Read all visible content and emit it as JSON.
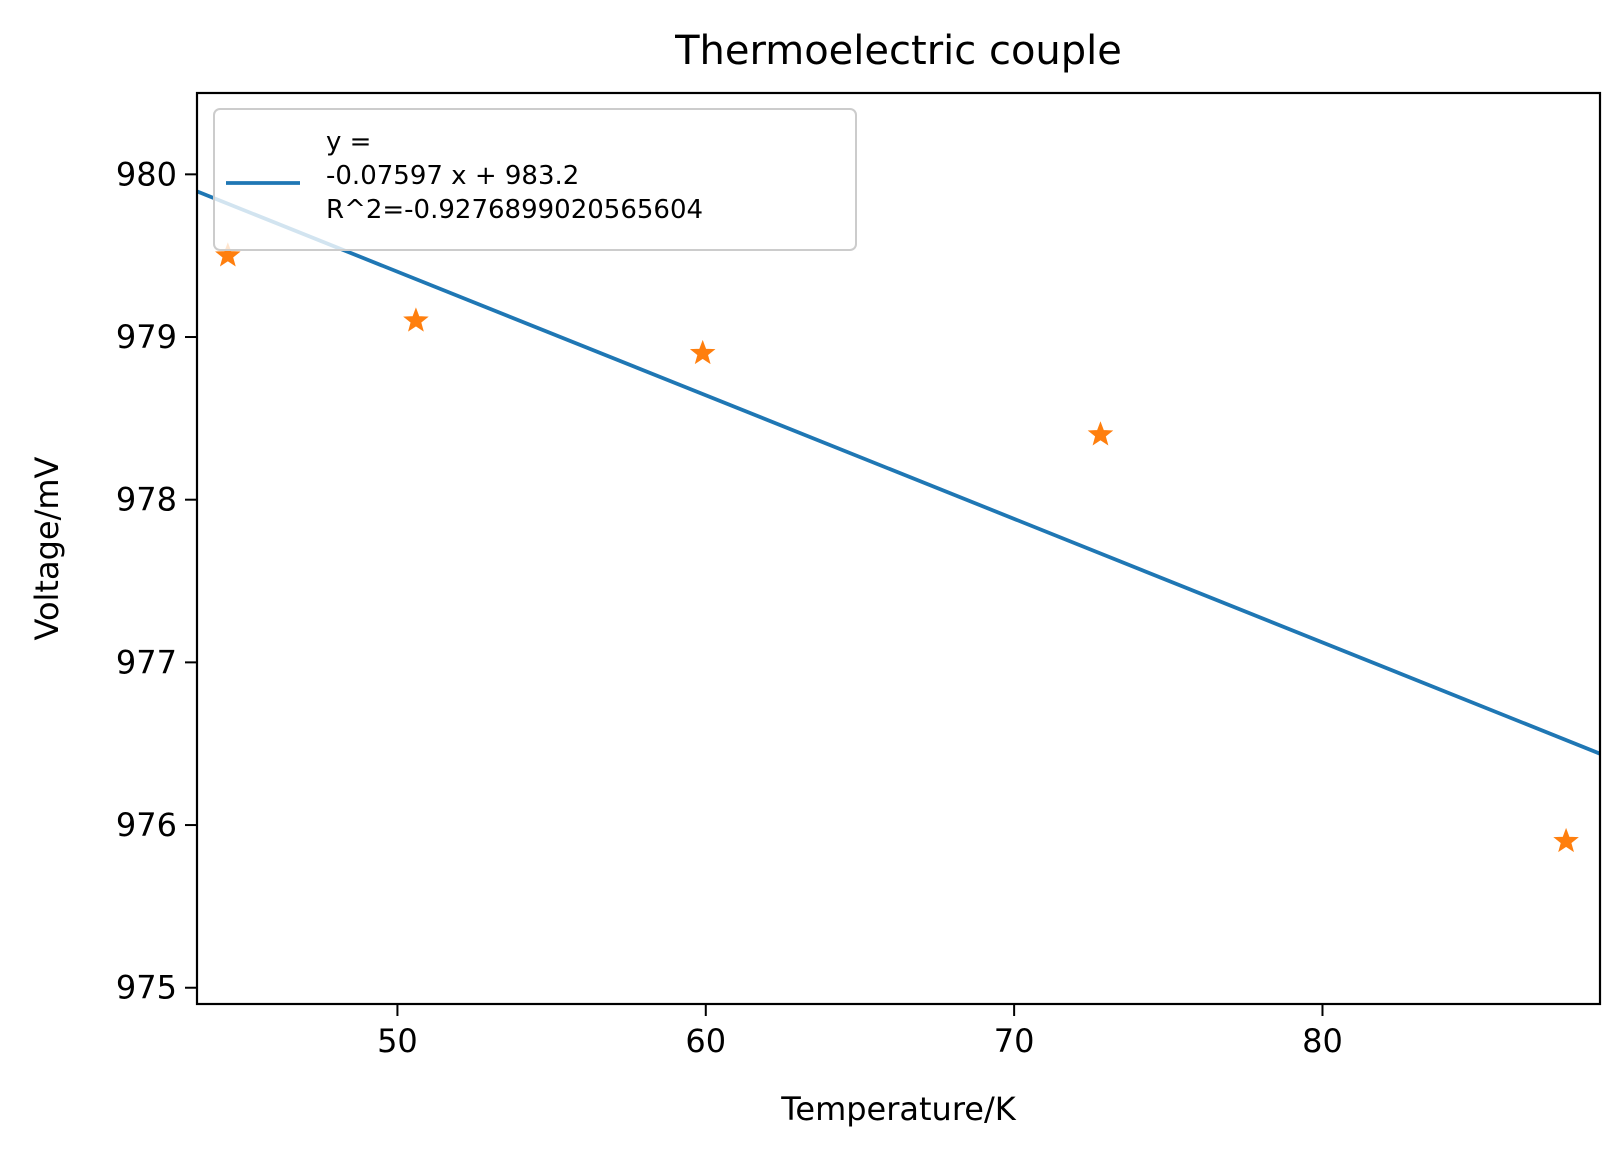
{
  "chart_data": {
    "type": "scatter",
    "title": "Thermoelectric couple",
    "xlabel": "Temperature/K",
    "ylabel": "Voltage/mV",
    "xlim": [
      43.5,
      89.0
    ],
    "ylim": [
      974.9,
      980.5
    ],
    "xticks": [
      50,
      60,
      70,
      80
    ],
    "yticks": [
      975,
      976,
      977,
      978,
      979,
      980
    ],
    "grid": false,
    "legend_position": "top-left",
    "series": [
      {
        "kind": "line",
        "name": "y =\n-0.07597 x + 983.2\n R^2=-0.9276899020565604",
        "name_lines": [
          "y =",
          "-0.07597 x + 983.2",
          " R^2=-0.9276899020565604"
        ],
        "slope": -0.07597,
        "intercept": 983.2,
        "x": [
          43.5,
          89.0
        ],
        "color": "#1f77b4"
      },
      {
        "kind": "scatter",
        "marker": "star",
        "color": "#ff7f0e",
        "x": [
          44.5,
          50.6,
          59.9,
          72.8,
          87.9
        ],
        "y": [
          979.5,
          979.1,
          978.9,
          978.4,
          975.9
        ]
      }
    ]
  }
}
